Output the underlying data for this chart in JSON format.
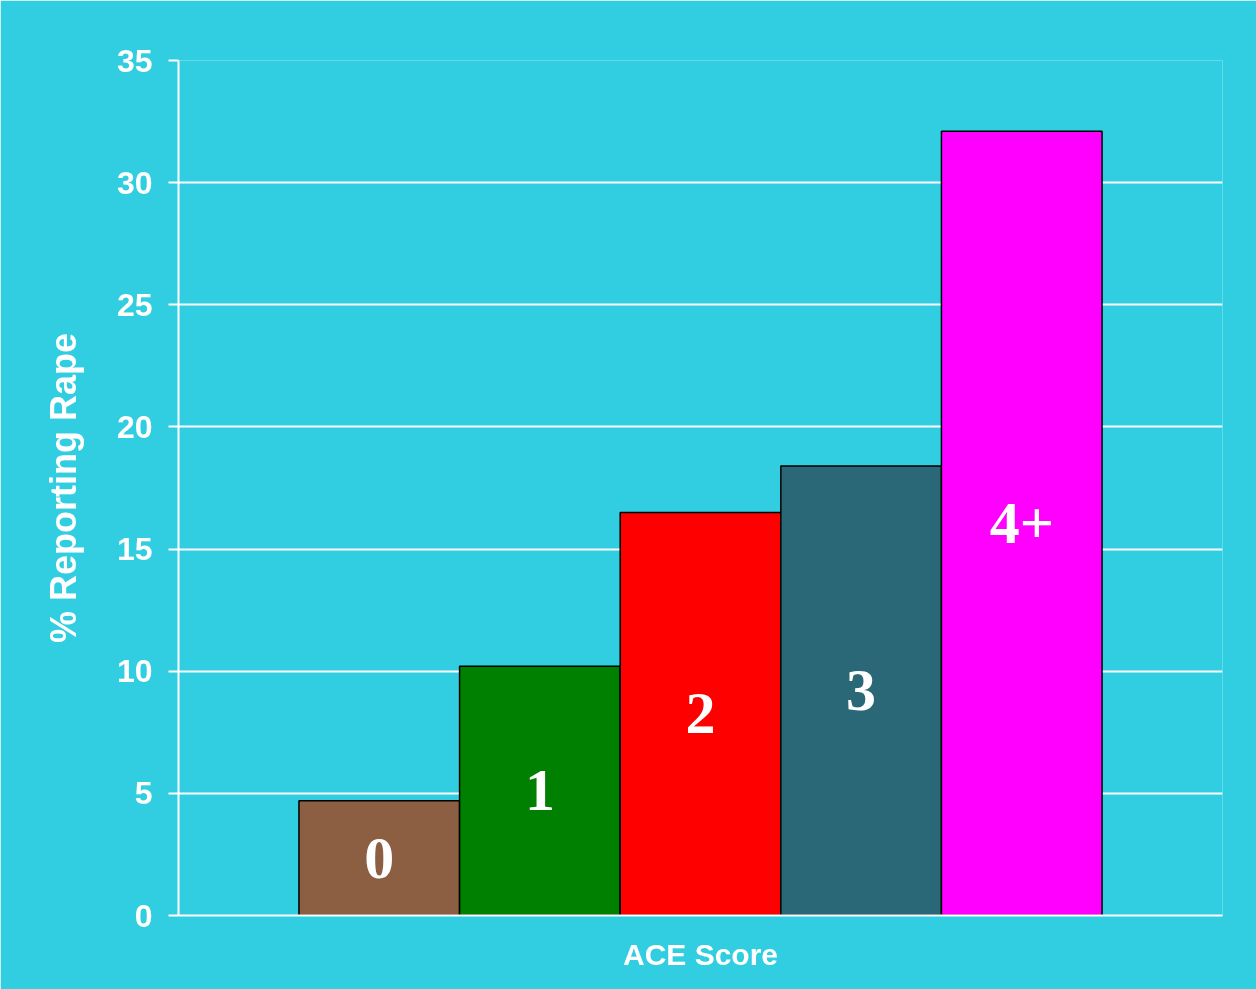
{
  "chart_data": {
    "type": "bar",
    "xlabel": "ACE Score",
    "ylabel": "% Reporting Rape",
    "categories": [
      "0",
      "1",
      "2",
      "3",
      "4+"
    ],
    "values": [
      4.7,
      10.2,
      16.5,
      18.4,
      32.1
    ],
    "colors": [
      "#8c5e42",
      "#008000",
      "#ff0000",
      "#2a6777",
      "#ff00ff"
    ],
    "ylim": [
      0,
      35
    ],
    "yticks": [
      0,
      5,
      10,
      15,
      20,
      25,
      30,
      35
    ],
    "grid": "y"
  }
}
